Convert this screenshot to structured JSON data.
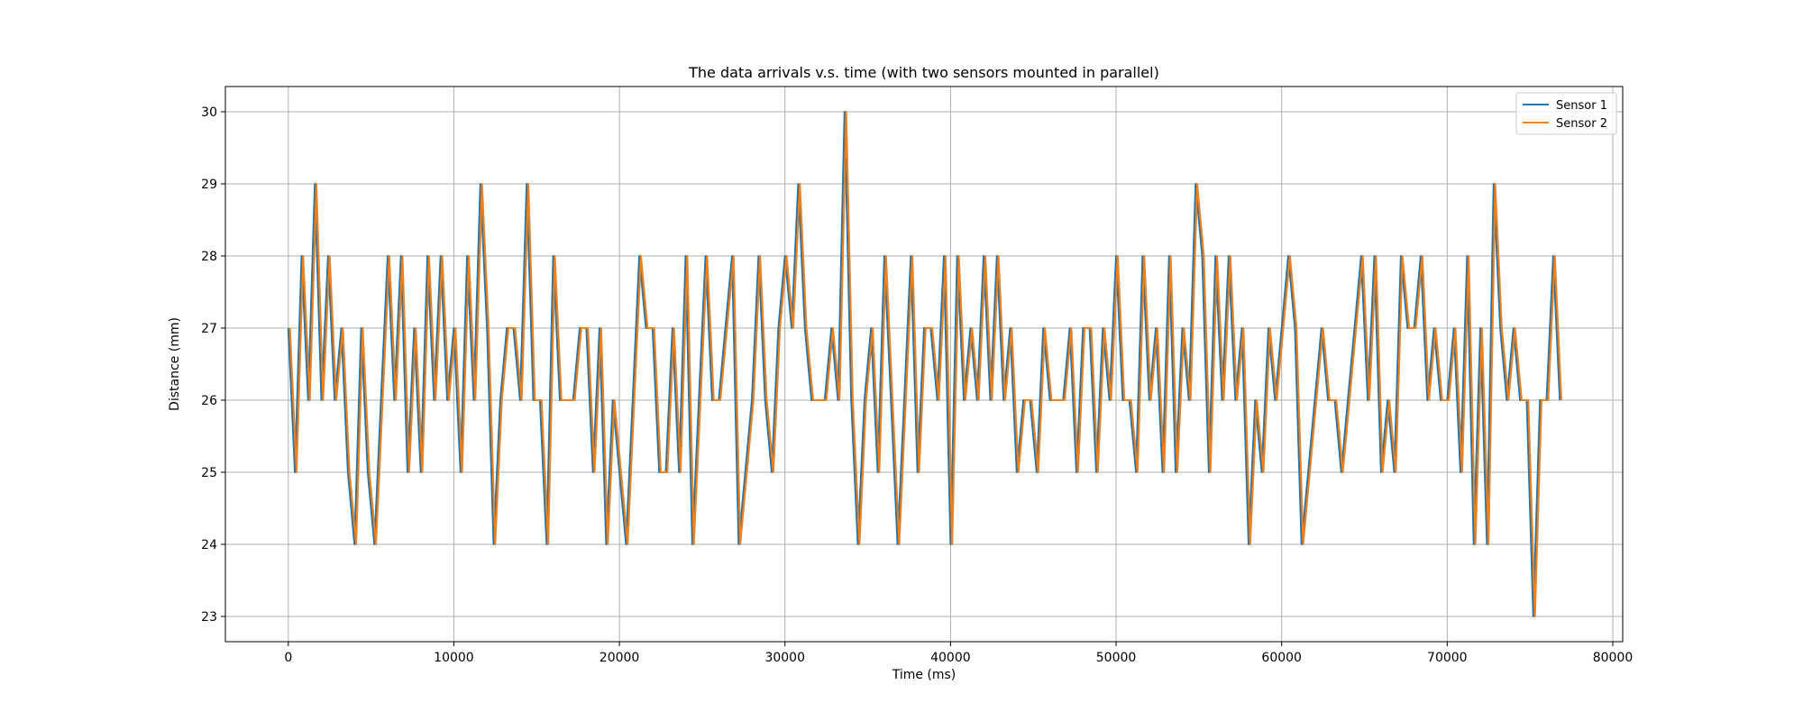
{
  "chart_data": {
    "type": "line",
    "title": "The data arrivals v.s. time (with two sensors mounted in parallel)",
    "xlabel": "Time (ms)",
    "ylabel": "Distance (mm)",
    "xlim": [
      -3800,
      80600
    ],
    "ylim": [
      22.65,
      30.35
    ],
    "xticks": [
      0,
      10000,
      20000,
      30000,
      40000,
      50000,
      60000,
      70000,
      80000
    ],
    "yticks": [
      23,
      24,
      25,
      26,
      27,
      28,
      29,
      30
    ],
    "grid": true,
    "legend_position": "top-right",
    "series": [
      {
        "name": "Sensor 1",
        "color": "#1f77b4",
        "x": [
          0,
          400,
          800,
          1200,
          1600,
          2000,
          2400,
          2800,
          3200,
          3600,
          4000,
          4400,
          4800,
          5200,
          5600,
          6000,
          6400,
          6800,
          7200,
          7600,
          8000,
          8400,
          8800,
          9200,
          9600,
          10000,
          10400,
          10800,
          11200,
          11600,
          12000,
          12400,
          12800,
          13200,
          13600,
          14000,
          14400,
          14800,
          15200,
          15600,
          16000,
          16400,
          16800,
          17200,
          17600,
          18000,
          18400,
          18800,
          19200,
          19600,
          20000,
          20400,
          20800,
          21200,
          21600,
          22000,
          22400,
          22800,
          23200,
          23600,
          24000,
          24400,
          24800,
          25200,
          25600,
          26000,
          26400,
          26800,
          27200,
          27600,
          28000,
          28400,
          28800,
          29200,
          29600,
          30000,
          30400,
          30800,
          31200,
          31600,
          32000,
          32400,
          32800,
          33200,
          33600,
          34000,
          34400,
          34800,
          35200,
          35600,
          36000,
          36400,
          36800,
          37200,
          37600,
          38000,
          38400,
          38800,
          39200,
          39600,
          40000,
          40400,
          40800,
          41200,
          41600,
          42000,
          42400,
          42800,
          43200,
          43600,
          44000,
          44400,
          44800,
          45200,
          45600,
          46000,
          46400,
          46800,
          47200,
          47600,
          48000,
          48400,
          48800,
          49200,
          49600,
          50000,
          50400,
          50800,
          51200,
          51600,
          52000,
          52400,
          52800,
          53200,
          53600,
          54000,
          54400,
          54800,
          55200,
          55600,
          56000,
          56400,
          56800,
          57200,
          57600,
          58000,
          58400,
          58800,
          59200,
          59600,
          60000,
          60400,
          60800,
          61200,
          61600,
          62000,
          62400,
          62800,
          63200,
          63600,
          64000,
          64400,
          64800,
          65200,
          65600,
          66000,
          66400,
          66800,
          67200,
          67600,
          68000,
          68400,
          68800,
          69200,
          69600,
          70000,
          70400,
          70800,
          71200,
          71600,
          72000,
          72400,
          72800,
          73200,
          73600,
          74000,
          74400,
          74800,
          75200,
          75600,
          76000,
          76400,
          76800
        ],
        "y": [
          27,
          25,
          28,
          26,
          29,
          26,
          28,
          26,
          27,
          25,
          24,
          27,
          25,
          24,
          26,
          28,
          26,
          28,
          25,
          27,
          25,
          28,
          26,
          28,
          26,
          27,
          25,
          28,
          26,
          29,
          27,
          24,
          26,
          27,
          27,
          26,
          29,
          26,
          26,
          24,
          28,
          26,
          26,
          26,
          27,
          27,
          25,
          27,
          24,
          26,
          25,
          24,
          26,
          28,
          27,
          27,
          25,
          25,
          27,
          25,
          28,
          24,
          26,
          28,
          26,
          26,
          27,
          28,
          24,
          25,
          26,
          28,
          26,
          25,
          27,
          28,
          27,
          29,
          27,
          26,
          26,
          26,
          27,
          26,
          30,
          26,
          24,
          26,
          27,
          25,
          28,
          26,
          24,
          26,
          28,
          25,
          27,
          27,
          26,
          28,
          24,
          28,
          26,
          27,
          26,
          28,
          26,
          28,
          26,
          27,
          25,
          26,
          26,
          25,
          27,
          26,
          26,
          26,
          27,
          25,
          27,
          27,
          25,
          27,
          26,
          28,
          26,
          26,
          25,
          28,
          26,
          27,
          25,
          28,
          25,
          27,
          26,
          29,
          28,
          25,
          28,
          26,
          28,
          26,
          27,
          24,
          26,
          25,
          27,
          26,
          27,
          28,
          27,
          24,
          25,
          26,
          27,
          26,
          26,
          25,
          26,
          27,
          28,
          26,
          28,
          25,
          26,
          25,
          28,
          27,
          27,
          28,
          26,
          27,
          26,
          26,
          27,
          25,
          28,
          24,
          27,
          24,
          29,
          27,
          26,
          27,
          26,
          26,
          23,
          26,
          26,
          28,
          26
        ]
      },
      {
        "name": "Sensor 2",
        "color": "#ff7f0e",
        "x": [
          100,
          500,
          900,
          1300,
          1700,
          2100,
          2500,
          2900,
          3300,
          3700,
          4100,
          4500,
          4900,
          5300,
          5700,
          6100,
          6500,
          6900,
          7300,
          7700,
          8100,
          8500,
          8900,
          9300,
          9700,
          10100,
          10500,
          10900,
          11300,
          11700,
          12100,
          12500,
          12900,
          13300,
          13700,
          14100,
          14500,
          14900,
          15300,
          15700,
          16100,
          16500,
          16900,
          17300,
          17700,
          18100,
          18500,
          18900,
          19300,
          19700,
          20100,
          20500,
          20900,
          21300,
          21700,
          22100,
          22500,
          22900,
          23300,
          23700,
          24100,
          24500,
          24900,
          25300,
          25700,
          26100,
          26500,
          26900,
          27300,
          27700,
          28100,
          28500,
          28900,
          29300,
          29700,
          30100,
          30500,
          30900,
          31300,
          31700,
          32100,
          32500,
          32900,
          33300,
          33700,
          34100,
          34500,
          34900,
          35300,
          35700,
          36100,
          36500,
          36900,
          37300,
          37700,
          38100,
          38500,
          38900,
          39300,
          39700,
          40100,
          40500,
          40900,
          41300,
          41700,
          42100,
          42500,
          42900,
          43300,
          43700,
          44100,
          44500,
          44900,
          45300,
          45700,
          46100,
          46500,
          46900,
          47300,
          47700,
          48100,
          48500,
          48900,
          49300,
          49700,
          50100,
          50500,
          50900,
          51300,
          51700,
          52100,
          52500,
          52900,
          53300,
          53700,
          54100,
          54500,
          54900,
          55300,
          55700,
          56100,
          56500,
          56900,
          57300,
          57700,
          58100,
          58500,
          58900,
          59300,
          59700,
          60100,
          60500,
          60900,
          61300,
          61700,
          62100,
          62500,
          62900,
          63300,
          63700,
          64100,
          64500,
          64900,
          65300,
          65700,
          66100,
          66500,
          66900,
          67300,
          67700,
          68100,
          68500,
          68900,
          69300,
          69700,
          70100,
          70500,
          70900,
          71300,
          71700,
          72100,
          72500,
          72900,
          73300,
          73700,
          74100,
          74500,
          74900,
          75300,
          75700,
          76100,
          76500,
          76900
        ],
        "y": [
          27,
          25,
          28,
          26,
          29,
          26,
          28,
          26,
          27,
          25,
          24,
          27,
          25,
          24,
          26,
          28,
          26,
          28,
          25,
          27,
          25,
          28,
          26,
          28,
          26,
          27,
          25,
          28,
          26,
          29,
          27,
          24,
          26,
          27,
          27,
          26,
          29,
          26,
          26,
          24,
          28,
          26,
          26,
          26,
          27,
          27,
          25,
          27,
          24,
          26,
          25,
          24,
          26,
          28,
          27,
          27,
          25,
          25,
          27,
          25,
          28,
          24,
          26,
          28,
          26,
          26,
          27,
          28,
          24,
          25,
          26,
          28,
          26,
          25,
          27,
          28,
          27,
          29,
          27,
          26,
          26,
          26,
          27,
          26,
          30,
          26,
          24,
          26,
          27,
          25,
          28,
          26,
          24,
          26,
          28,
          25,
          27,
          27,
          26,
          28,
          24,
          28,
          26,
          27,
          26,
          28,
          26,
          28,
          26,
          27,
          25,
          26,
          26,
          25,
          27,
          26,
          26,
          26,
          27,
          25,
          27,
          27,
          25,
          27,
          26,
          28,
          26,
          26,
          25,
          28,
          26,
          27,
          25,
          28,
          25,
          27,
          26,
          29,
          28,
          25,
          28,
          26,
          28,
          26,
          27,
          24,
          26,
          25,
          27,
          26,
          27,
          28,
          27,
          24,
          25,
          26,
          27,
          26,
          26,
          25,
          26,
          27,
          28,
          26,
          28,
          25,
          26,
          25,
          28,
          27,
          27,
          28,
          26,
          27,
          26,
          26,
          27,
          25,
          28,
          24,
          27,
          24,
          29,
          27,
          26,
          27,
          26,
          26,
          23,
          26,
          26,
          28,
          26
        ]
      }
    ]
  }
}
